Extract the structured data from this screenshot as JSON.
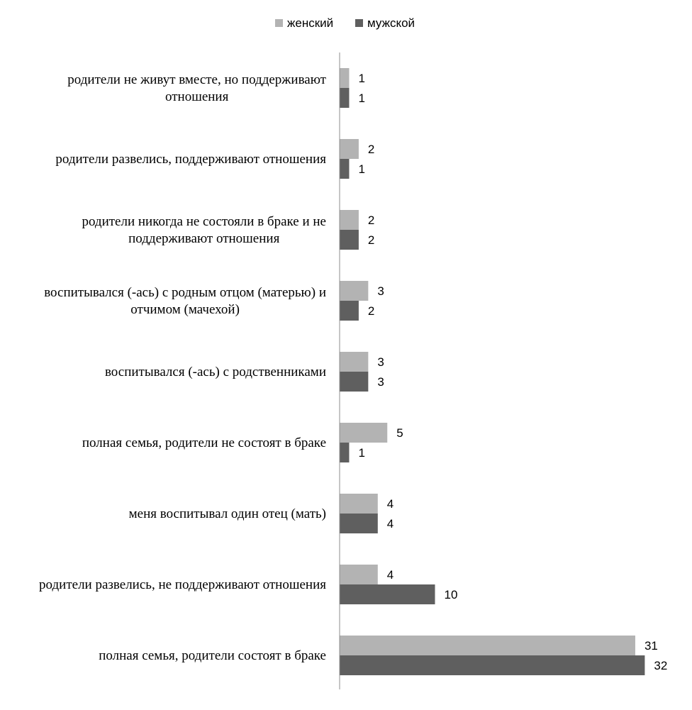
{
  "chart_data": {
    "type": "bar",
    "orientation": "horizontal",
    "categories": [
      [
        "родители не живут вместе, но поддерживают",
        "отношения"
      ],
      [
        "родители развелись, поддерживают отношения"
      ],
      [
        "родители никогда не состояли в браке и не",
        "поддерживают отношения"
      ],
      [
        "воспитывался (-ась) с родным отцом (матерью) и",
        "отчимом (мачехой)"
      ],
      [
        "воспитывался (-ась) с родственниками"
      ],
      [
        "полная семья, родители не состоят в браке"
      ],
      [
        "меня воспитывал один отец (мать)"
      ],
      [
        "родители развелись, не поддерживают отношения"
      ],
      [
        "полная семья, родители состоят в браке"
      ]
    ],
    "series": [
      {
        "name": "женский",
        "color": "#b3b3b3",
        "values": [
          1,
          2,
          2,
          3,
          3,
          5,
          4,
          4,
          31
        ]
      },
      {
        "name": "мужской",
        "color": "#5f5f5f",
        "values": [
          1,
          1,
          2,
          2,
          3,
          1,
          4,
          10,
          32
        ]
      }
    ],
    "xlim": [
      0,
      32
    ],
    "grid": false,
    "legend_position": "top",
    "data_labels": true
  }
}
